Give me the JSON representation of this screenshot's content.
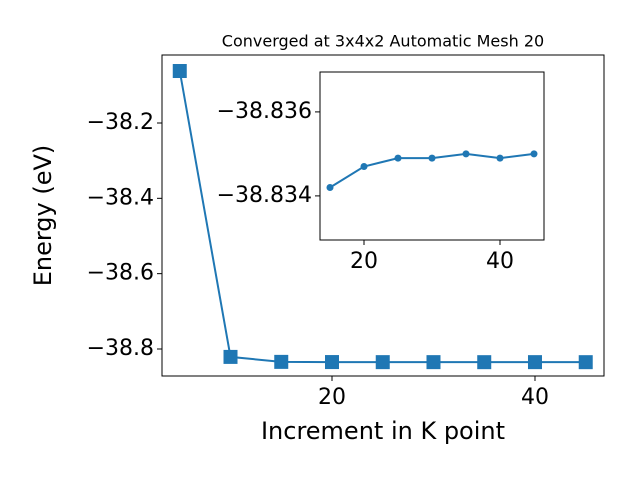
{
  "chart_data": [
    {
      "type": "line",
      "title": "Converged at 3x4x2 Automatic Mesh 20",
      "x_label": "Increment in K point",
      "y_label": "Energy (eV)",
      "x": [
        5,
        10,
        15,
        20,
        25,
        30,
        35,
        40,
        45
      ],
      "series": [
        {
          "color": "#1f77b4",
          "marker": "square",
          "values": [
            -38.062,
            -38.821,
            -38.8342,
            -38.8347,
            -38.8349,
            -38.8349,
            -38.835,
            -38.8349,
            -38.835
          ]
        }
      ],
      "xlim": [
        3.25,
        46.8
      ],
      "ylim": [
        -38.8717,
        -38.0195
      ],
      "xticks": [
        20,
        40
      ],
      "yticks": [
        {
          "value": -38.2,
          "label": "−38.2"
        },
        {
          "value": -38.4,
          "label": "−38.4"
        },
        {
          "value": -38.6,
          "label": "−38.6"
        },
        {
          "value": -38.8,
          "label": "−38.8"
        }
      ]
    },
    {
      "type": "line",
      "x": [
        15,
        20,
        25,
        30,
        35,
        40,
        45
      ],
      "series": [
        {
          "color": "#1f77b4",
          "marker": "circle",
          "values": [
            -38.8342,
            -38.8347,
            -38.8349,
            -38.8349,
            -38.835,
            -38.8349,
            -38.835
          ]
        }
      ],
      "xlim": [
        13.53,
        46.47
      ],
      "ylim": [
        -38.83295,
        -38.83695
      ],
      "xticks": [
        20,
        40
      ],
      "yticks": [
        {
          "value": -38.836,
          "label": "−38.836"
        },
        {
          "value": -38.834,
          "label": "−38.834"
        }
      ]
    }
  ]
}
